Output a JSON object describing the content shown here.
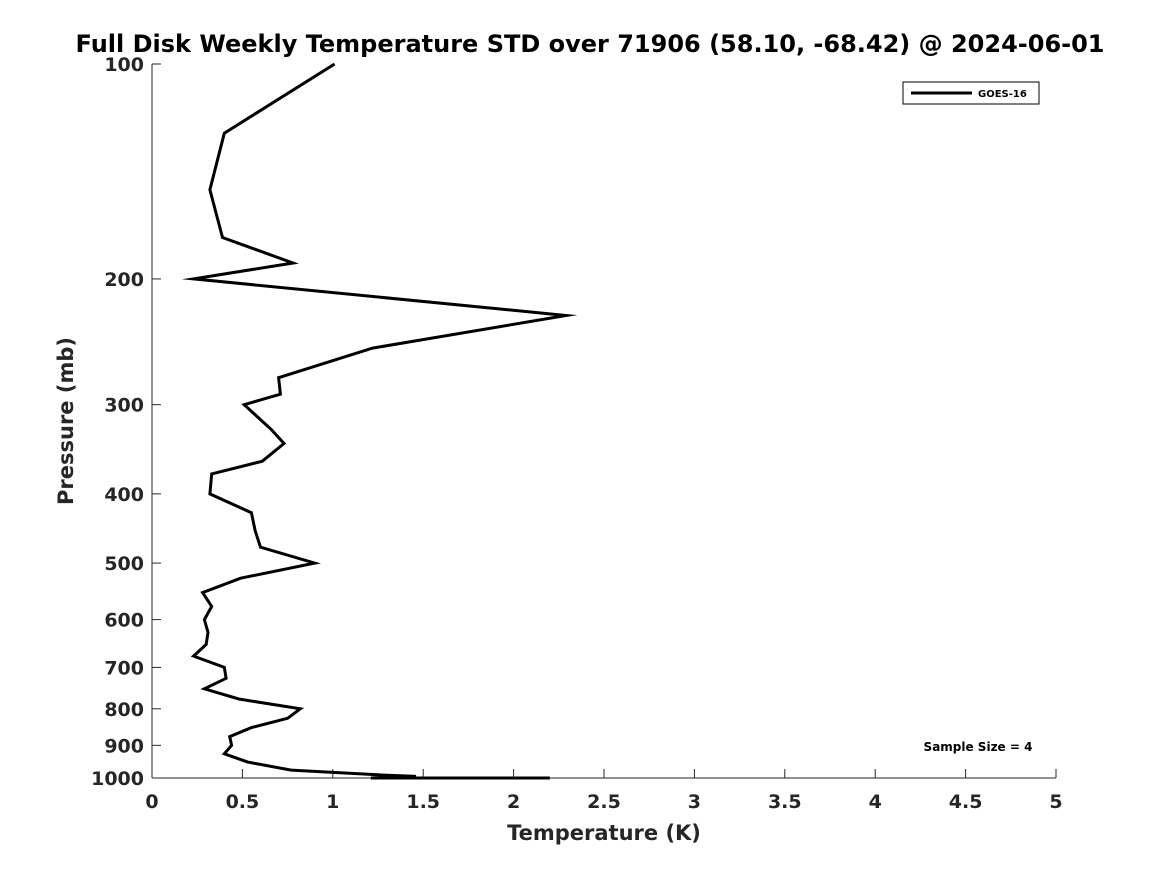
{
  "chart_data": {
    "type": "line",
    "title": "Full Disk Weekly Temperature STD over 71906 (58.10, -68.42) @ 2024-06-01",
    "xlabel": "Temperature (K)",
    "ylabel": "Pressure (mb)",
    "xlim": [
      0,
      5
    ],
    "ylim": [
      100,
      1000
    ],
    "yscale": "log",
    "yreversed": true,
    "grid": false,
    "xticks": [
      "0",
      "0.5",
      "1",
      "1.5",
      "2",
      "2.5",
      "3",
      "3.5",
      "4",
      "4.5",
      "5"
    ],
    "yticks": [
      "100",
      "200",
      "300",
      "400",
      "500",
      "600",
      "700",
      "800",
      "900",
      "1000"
    ],
    "legend_position": "top-right",
    "annotation": "Sample Size = 4",
    "series": [
      {
        "name": "GOES-16",
        "color": "#000000",
        "x": [
          1.01,
          0.4,
          0.32,
          0.39,
          0.78,
          0.23,
          2.29,
          1.22,
          0.7,
          0.71,
          0.51,
          0.66,
          0.73,
          0.61,
          0.33,
          0.32,
          0.55,
          0.57,
          0.6,
          0.9,
          0.49,
          0.28,
          0.33,
          0.29,
          0.31,
          0.3,
          0.23,
          0.4,
          0.41,
          0.29,
          0.48,
          0.82,
          0.75,
          0.55,
          0.43,
          0.44,
          0.4,
          0.53,
          0.77,
          1.26,
          1.46,
          1.21,
          2.2
        ],
        "y": [
          100,
          125,
          150,
          175,
          190,
          200,
          225,
          250,
          275,
          290,
          300,
          325,
          340,
          360,
          375,
          400,
          425,
          450,
          475,
          500,
          525,
          550,
          575,
          600,
          625,
          650,
          675,
          700,
          725,
          750,
          775,
          800,
          825,
          850,
          875,
          900,
          925,
          950,
          975,
          990,
          995,
          1000,
          1000
        ]
      }
    ]
  }
}
